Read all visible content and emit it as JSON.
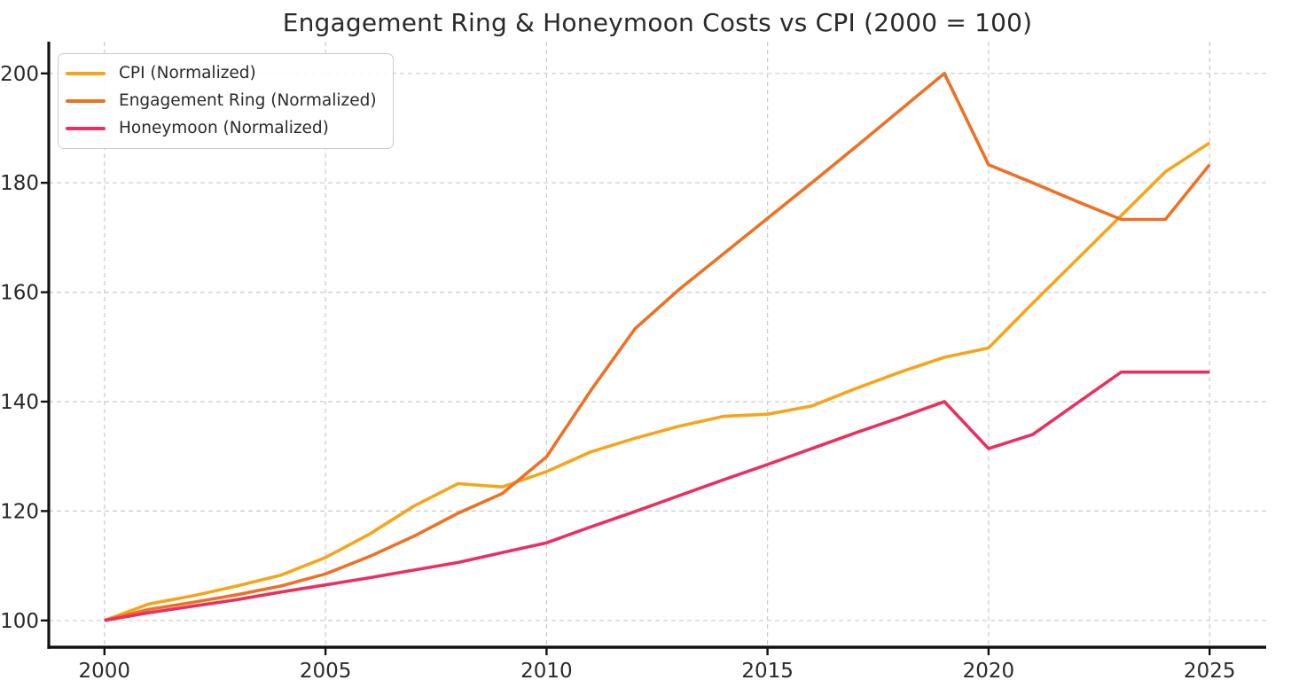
{
  "chart_data": {
    "type": "line",
    "title": "Engagement Ring & Honeymoon Costs vs CPI (2000 = 100)",
    "x": [
      2000,
      2001,
      2002,
      2003,
      2004,
      2005,
      2006,
      2007,
      2008,
      2009,
      2010,
      2011,
      2012,
      2013,
      2014,
      2015,
      2016,
      2017,
      2018,
      2019,
      2020,
      2021,
      2022,
      2023,
      2024,
      2025
    ],
    "series": [
      {
        "name": "CPI (Normalized)",
        "color": "#F5A51B",
        "values": [
          100,
          103.0,
          104.5,
          106.3,
          108.3,
          111.5,
          115.8,
          120.9,
          125.0,
          124.4,
          127.2,
          130.8,
          133.3,
          135.5,
          137.3,
          137.7,
          139.2,
          142.4,
          145.4,
          148.1,
          149.8,
          158.0,
          166.0,
          174.0,
          182.0,
          187.3
        ]
      },
      {
        "name": "Engagement Ring (Normalized)",
        "color": "#ED7125",
        "values": [
          100,
          102.0,
          103.3,
          104.7,
          106.3,
          108.5,
          111.7,
          115.4,
          119.6,
          123.2,
          129.9,
          142.0,
          153.3,
          160.5,
          167.0,
          173.5,
          180.0,
          186.6,
          193.3,
          200.0,
          183.3,
          180.0,
          176.6,
          173.3,
          173.3,
          183.3
        ]
      },
      {
        "name": "Honeymoon (Normalized)",
        "color": "#E9305F",
        "values": [
          100,
          101.4,
          102.6,
          103.8,
          105.2,
          106.5,
          107.8,
          109.2,
          110.6,
          112.4,
          114.2,
          117.1,
          119.9,
          122.8,
          125.7,
          128.5,
          131.4,
          134.3,
          137.1,
          140.0,
          131.4,
          134.0,
          139.7,
          145.4,
          145.4,
          145.4
        ]
      }
    ],
    "xticks": [
      2000,
      2005,
      2010,
      2015,
      2020,
      2025
    ],
    "yticks": [
      100,
      120,
      140,
      160,
      180,
      200
    ],
    "xlim": [
      1998.74,
      2026.28
    ],
    "ylim": [
      95.1,
      205.8
    ],
    "grid": true,
    "grid_style": "dashed",
    "legend_position": "upper-left",
    "axis_color": "#111111",
    "grid_color": "#cccccc",
    "text_color": "#2a2a2a",
    "background": "#ffffff"
  }
}
